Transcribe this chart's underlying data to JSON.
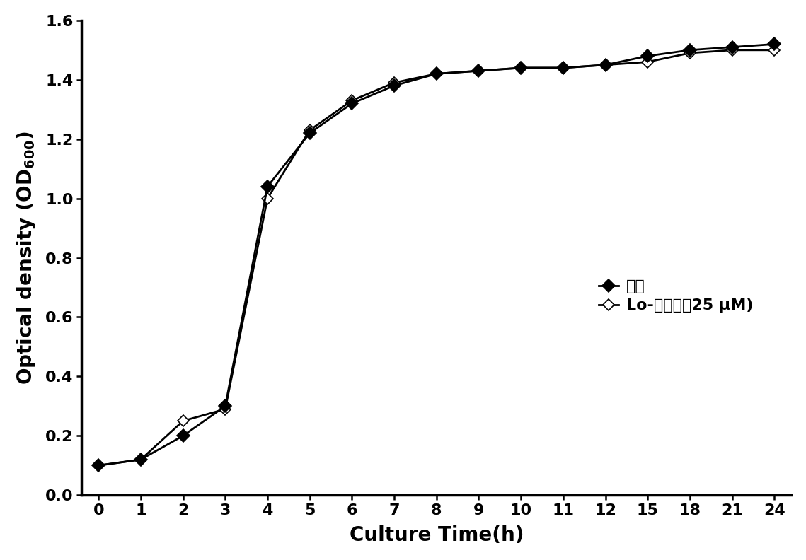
{
  "x_tick_labels": [
    "0",
    "1",
    "2",
    "3",
    "4",
    "5",
    "6",
    "7",
    "8",
    "9",
    "10",
    "11",
    "12",
    "15",
    "18",
    "21",
    "24"
  ],
  "control_y": [
    0.1,
    0.12,
    0.2,
    0.3,
    1.04,
    1.22,
    1.32,
    1.38,
    1.42,
    1.43,
    1.44,
    1.44,
    1.45,
    1.48,
    1.5,
    1.51,
    1.52
  ],
  "treatment_y": [
    0.1,
    0.12,
    0.25,
    0.29,
    1.0,
    1.23,
    1.33,
    1.39,
    1.42,
    1.43,
    1.44,
    1.44,
    1.45,
    1.46,
    1.49,
    1.5,
    1.5
  ],
  "xlabel": "Culture Time(h)",
  "ylabel_main": "Optical density (OD",
  "ylabel_sub": "600",
  "ylabel_end": ")",
  "ylim": [
    0,
    1.6
  ],
  "yticks": [
    0.0,
    0.2,
    0.4,
    0.6,
    0.8,
    1.0,
    1.2,
    1.4,
    1.6
  ],
  "legend_control": "对照",
  "legend_treatment": "Lo-异己基（25 μM)",
  "line_color": "#000000",
  "marker_size_control": 9,
  "marker_size_treatment": 8,
  "linewidth": 2.0,
  "font_size_labels": 20,
  "font_size_ticks": 16,
  "font_size_legend": 16,
  "background_color": "#ffffff"
}
